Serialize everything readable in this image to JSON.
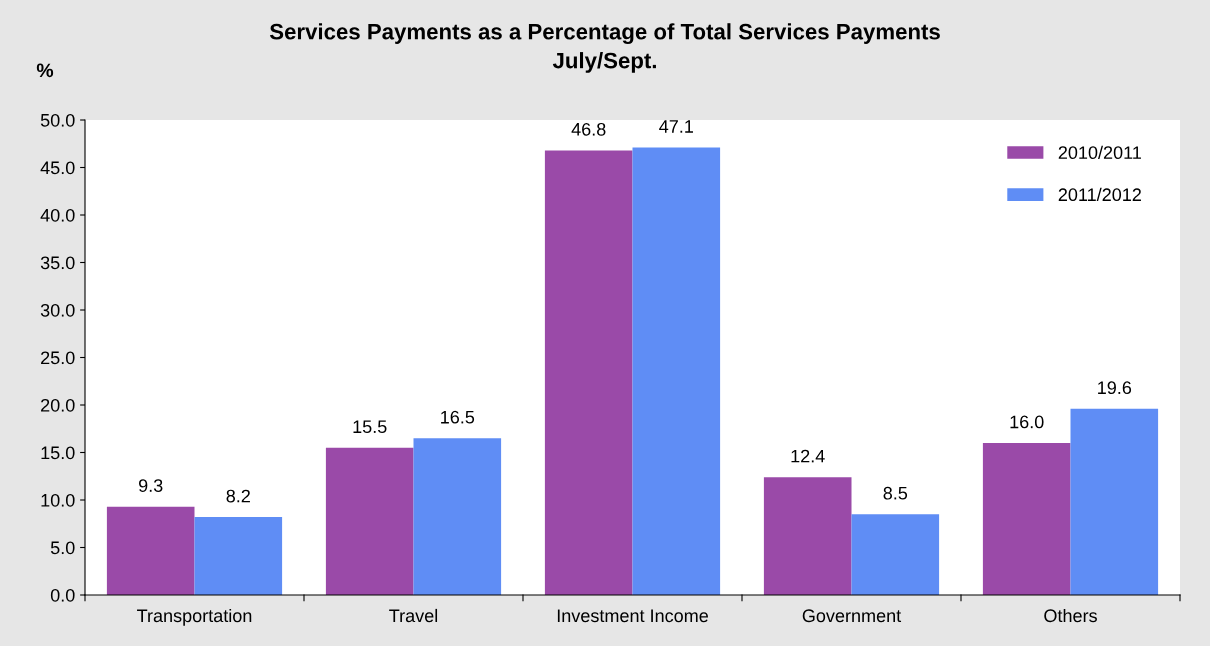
{
  "chart_data": {
    "type": "bar",
    "title": "Services Payments as a Percentage of Total Services Payments\nJuly/Sept.",
    "ylabel": "%",
    "categories": [
      "Transportation",
      "Travel",
      "Investment Income",
      "Government",
      "Others"
    ],
    "series": [
      {
        "name": "2010/2011",
        "color": "#9a4aa8",
        "values": [
          9.3,
          15.5,
          46.8,
          12.4,
          16.0
        ],
        "value_labels": [
          "9.3",
          "15.5",
          "46.8",
          "12.4",
          "16.0"
        ]
      },
      {
        "name": "2011/2012",
        "color": "#5f8df5",
        "values": [
          8.2,
          16.5,
          47.1,
          8.5,
          19.6
        ],
        "value_labels": [
          "8.2",
          "16.5",
          "47.1",
          "8.5",
          "19.6"
        ]
      }
    ],
    "ylim": [
      0,
      50
    ],
    "yticks": [
      {
        "value": 0,
        "label": "0.0"
      },
      {
        "value": 5,
        "label": "5.0"
      },
      {
        "value": 10,
        "label": "10.0"
      },
      {
        "value": 15,
        "label": "15.0"
      },
      {
        "value": 20,
        "label": "20.0"
      },
      {
        "value": 25,
        "label": "25.0"
      },
      {
        "value": 30,
        "label": "30.0"
      },
      {
        "value": 35,
        "label": "35.0"
      },
      {
        "value": 40,
        "label": "40.0"
      },
      {
        "value": 45,
        "label": "45.0"
      },
      {
        "value": 50,
        "label": "50.0"
      }
    ],
    "grid": false,
    "legend": "top right"
  }
}
